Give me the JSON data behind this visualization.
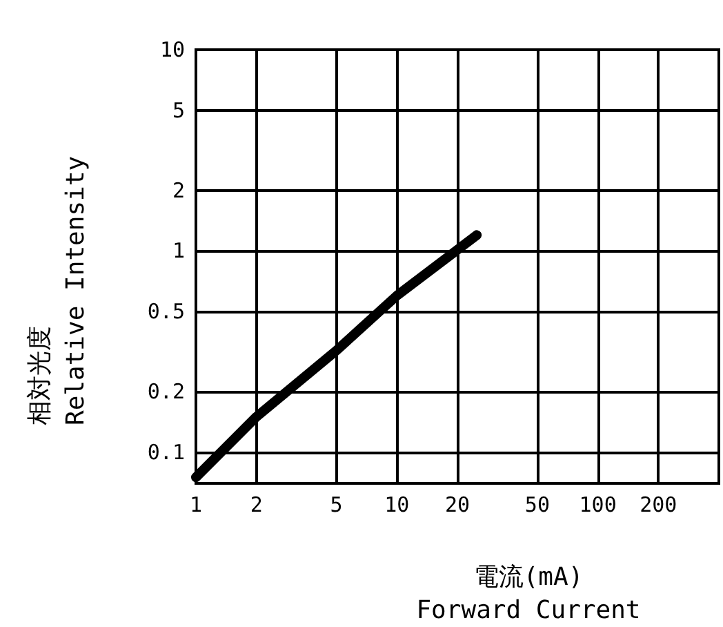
{
  "chart_data": {
    "type": "line",
    "xlabel": "電流(mA)\nForward Current",
    "ylabel": "相対光度\nRelative Intensity",
    "log": "xy",
    "grid": true,
    "line_style": "solid",
    "x": [
      1,
      2,
      5,
      10,
      25
    ],
    "series": [
      {
        "color": "#000000",
        "values": [
          0.075,
          0.15,
          0.32,
          0.6,
          1.2
        ]
      }
    ],
    "xlim": [
      1,
      400
    ],
    "xticks": [
      1,
      2,
      5,
      10,
      20,
      50,
      100,
      200
    ],
    "ylim": [
      0.07,
      10
    ],
    "yticks": [
      0.1,
      0.2,
      0.5,
      1,
      2,
      5,
      10
    ]
  }
}
